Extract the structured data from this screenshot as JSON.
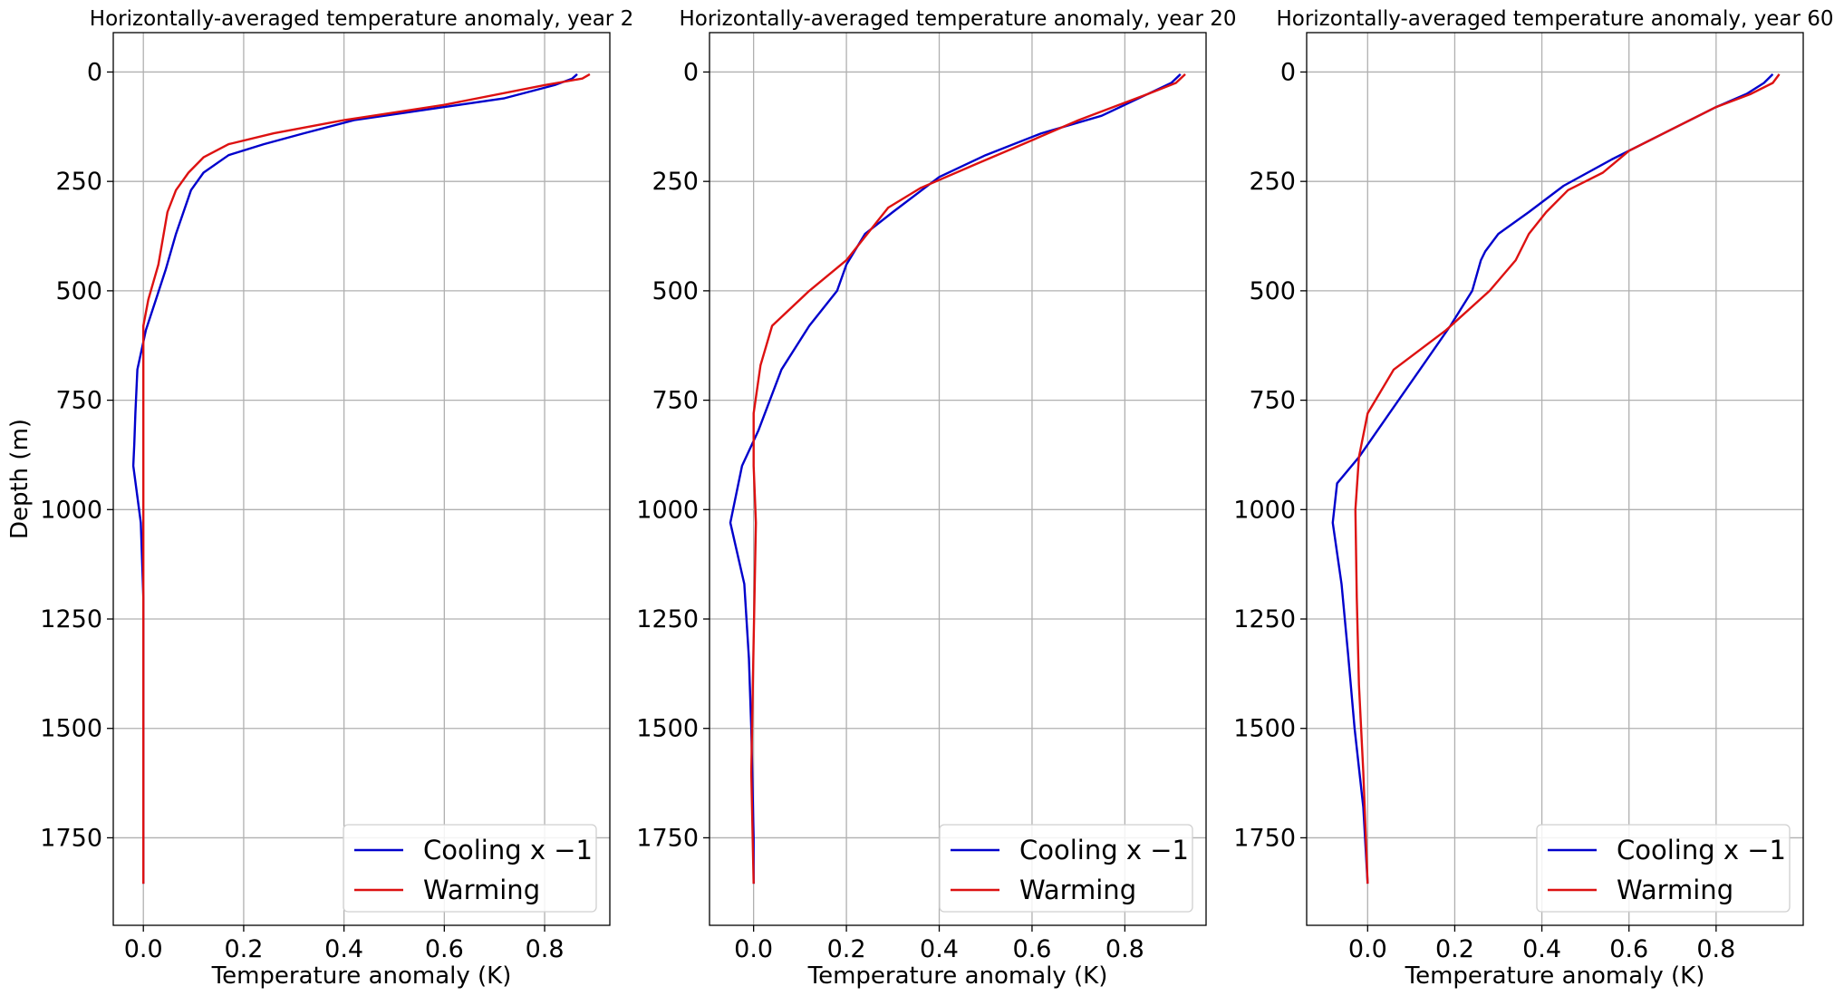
{
  "chart_data": [
    {
      "type": "line",
      "title": "Horizontally-averaged temperature anomaly, year 2",
      "xlabel": "Temperature anomaly (K)",
      "ylabel": "Depth (m)",
      "xlim": [
        -0.06,
        0.93
      ],
      "ylim": [
        1950,
        -90
      ],
      "y_inverted": true,
      "xticks": [
        0.0,
        0.2,
        0.4,
        0.6,
        0.8
      ],
      "xtick_labels": [
        "0.0",
        "0.2",
        "0.4",
        "0.6",
        "0.8"
      ],
      "yticks": [
        0,
        250,
        500,
        750,
        1000,
        1250,
        1500,
        1750
      ],
      "ytick_labels": [
        "0",
        "250",
        "500",
        "750",
        "1000",
        "1250",
        "1500",
        "1750"
      ],
      "grid": true,
      "legend_position": "lower-right",
      "series": [
        {
          "name": "Cooling x −1",
          "color": "#0000cc",
          "x": [
            0.865,
            0.855,
            0.82,
            0.72,
            0.6,
            0.42,
            0.32,
            0.24,
            0.17,
            0.12,
            0.095,
            0.065,
            0.045,
            0.025,
            0.005,
            -0.012,
            -0.016,
            -0.018,
            -0.02,
            -0.005,
            0.0,
            0.0,
            0.0,
            0.0,
            0.0
          ],
          "y": [
            5,
            15,
            30,
            60,
            80,
            110,
            140,
            165,
            190,
            230,
            270,
            370,
            450,
            520,
            590,
            680,
            780,
            850,
            900,
            1030,
            1200,
            1400,
            1600,
            1750,
            1855
          ]
        },
        {
          "name": "Warming",
          "color": "#dd1111",
          "x": [
            0.89,
            0.875,
            0.8,
            0.6,
            0.4,
            0.26,
            0.17,
            0.12,
            0.09,
            0.065,
            0.048,
            0.03,
            0.01,
            0.0,
            0.0,
            0.0,
            0.0,
            0.0,
            0.0
          ],
          "y": [
            5,
            15,
            30,
            75,
            110,
            140,
            165,
            195,
            230,
            270,
            320,
            440,
            520,
            580,
            700,
            1000,
            1400,
            1750,
            1855
          ]
        }
      ]
    },
    {
      "type": "line",
      "title": "Horizontally-averaged temperature anomaly, year 20",
      "xlabel": "Temperature anomaly (K)",
      "ylabel": "",
      "xlim": [
        -0.095,
        0.975
      ],
      "ylim": [
        1950,
        -90
      ],
      "y_inverted": true,
      "xticks": [
        0.0,
        0.2,
        0.4,
        0.6,
        0.8
      ],
      "xtick_labels": [
        "0.0",
        "0.2",
        "0.4",
        "0.6",
        "0.8"
      ],
      "yticks": [
        0,
        250,
        500,
        750,
        1000,
        1250,
        1500,
        1750
      ],
      "ytick_labels": [
        "0",
        "250",
        "500",
        "750",
        "1000",
        "1250",
        "1500",
        "1750"
      ],
      "grid": true,
      "legend_position": "lower-right",
      "series": [
        {
          "name": "Cooling x −1",
          "color": "#0000cc",
          "x": [
            0.92,
            0.9,
            0.85,
            0.75,
            0.62,
            0.5,
            0.4,
            0.3,
            0.24,
            0.2,
            0.18,
            0.12,
            0.06,
            0.01,
            -0.025,
            -0.05,
            -0.02,
            -0.01,
            -0.005,
            0.0,
            0.0
          ],
          "y": [
            5,
            25,
            50,
            100,
            140,
            190,
            240,
            320,
            370,
            440,
            500,
            580,
            680,
            820,
            900,
            1030,
            1170,
            1340,
            1500,
            1750,
            1855
          ]
        },
        {
          "name": "Warming",
          "color": "#dd1111",
          "x": [
            0.93,
            0.91,
            0.85,
            0.7,
            0.58,
            0.48,
            0.36,
            0.29,
            0.2,
            0.12,
            0.04,
            0.015,
            0.0,
            0.0,
            0.005,
            0.0,
            -0.005,
            0.0
          ],
          "y": [
            5,
            25,
            50,
            110,
            165,
            210,
            265,
            310,
            430,
            500,
            580,
            670,
            780,
            900,
            1030,
            1300,
            1600,
            1855
          ]
        }
      ]
    },
    {
      "type": "line",
      "title": "Horizontally-averaged temperature anomaly, year 60",
      "xlabel": "Temperature anomaly (K)",
      "ylabel": "",
      "xlim": [
        -0.14,
        1.0
      ],
      "ylim": [
        1950,
        -90
      ],
      "y_inverted": true,
      "xticks": [
        0.0,
        0.2,
        0.4,
        0.6,
        0.8
      ],
      "xtick_labels": [
        "0.0",
        "0.2",
        "0.4",
        "0.6",
        "0.8"
      ],
      "yticks": [
        0,
        250,
        500,
        750,
        1000,
        1250,
        1500,
        1750
      ],
      "ytick_labels": [
        "0",
        "250",
        "500",
        "750",
        "1000",
        "1250",
        "1500",
        "1750"
      ],
      "grid": true,
      "legend_position": "lower-right",
      "series": [
        {
          "name": "Cooling x −1",
          "color": "#0000cc",
          "x": [
            0.93,
            0.91,
            0.87,
            0.8,
            0.7,
            0.56,
            0.45,
            0.37,
            0.3,
            0.27,
            0.26,
            0.24,
            0.19,
            0.12,
            0.05,
            -0.02,
            -0.07,
            -0.08,
            -0.06,
            -0.045,
            -0.03,
            -0.01,
            0.0
          ],
          "y": [
            5,
            25,
            50,
            80,
            130,
            200,
            260,
            320,
            370,
            410,
            430,
            500,
            580,
            680,
            780,
            880,
            940,
            1030,
            1170,
            1330,
            1500,
            1680,
            1855
          ]
        },
        {
          "name": "Warming",
          "color": "#dd1111",
          "x": [
            0.945,
            0.93,
            0.88,
            0.8,
            0.7,
            0.6,
            0.54,
            0.46,
            0.41,
            0.37,
            0.34,
            0.28,
            0.18,
            0.06,
            0.0,
            -0.02,
            -0.028,
            -0.025,
            -0.02,
            -0.01,
            0.0
          ],
          "y": [
            5,
            25,
            50,
            80,
            130,
            180,
            230,
            270,
            320,
            370,
            430,
            500,
            590,
            680,
            780,
            880,
            1000,
            1200,
            1400,
            1600,
            1855
          ]
        }
      ]
    }
  ]
}
